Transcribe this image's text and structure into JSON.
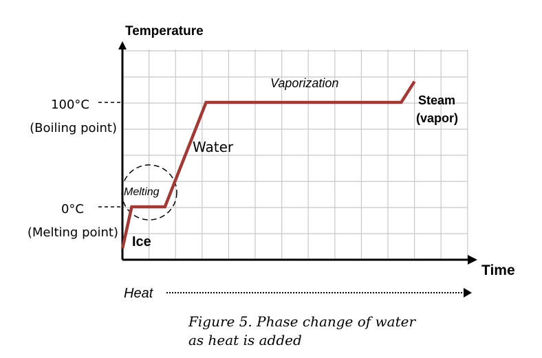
{
  "chart_data": {
    "type": "line",
    "title": "",
    "xlabel": "Time",
    "ylabel": "Temperature",
    "heat_label": "Heat",
    "y_ticks": [
      {
        "value": 100,
        "label": "100°C",
        "sublabel": "(Boiling point)"
      },
      {
        "value": 0,
        "label": "0°C",
        "sublabel": "(Melting point)"
      }
    ],
    "series": [
      {
        "points": [
          {
            "x": 0,
            "y": -40
          },
          {
            "x": 0.7,
            "y": 0
          },
          {
            "x": 3.2,
            "y": 0
          },
          {
            "x": 6.3,
            "y": 100
          },
          {
            "x": 21.0,
            "y": 100
          },
          {
            "x": 22.0,
            "y": 120
          }
        ]
      }
    ],
    "annotations": {
      "melting": "Melting",
      "vaporization": "Vaporization",
      "water": "Water",
      "ice": "Ice",
      "steam_line1": "Steam",
      "steam_line2": "(vapor)"
    },
    "grid": true,
    "line_color": "#A03A37"
  },
  "caption": {
    "line1": "Figure 5. Phase change of water",
    "line2": "as heat is added"
  }
}
